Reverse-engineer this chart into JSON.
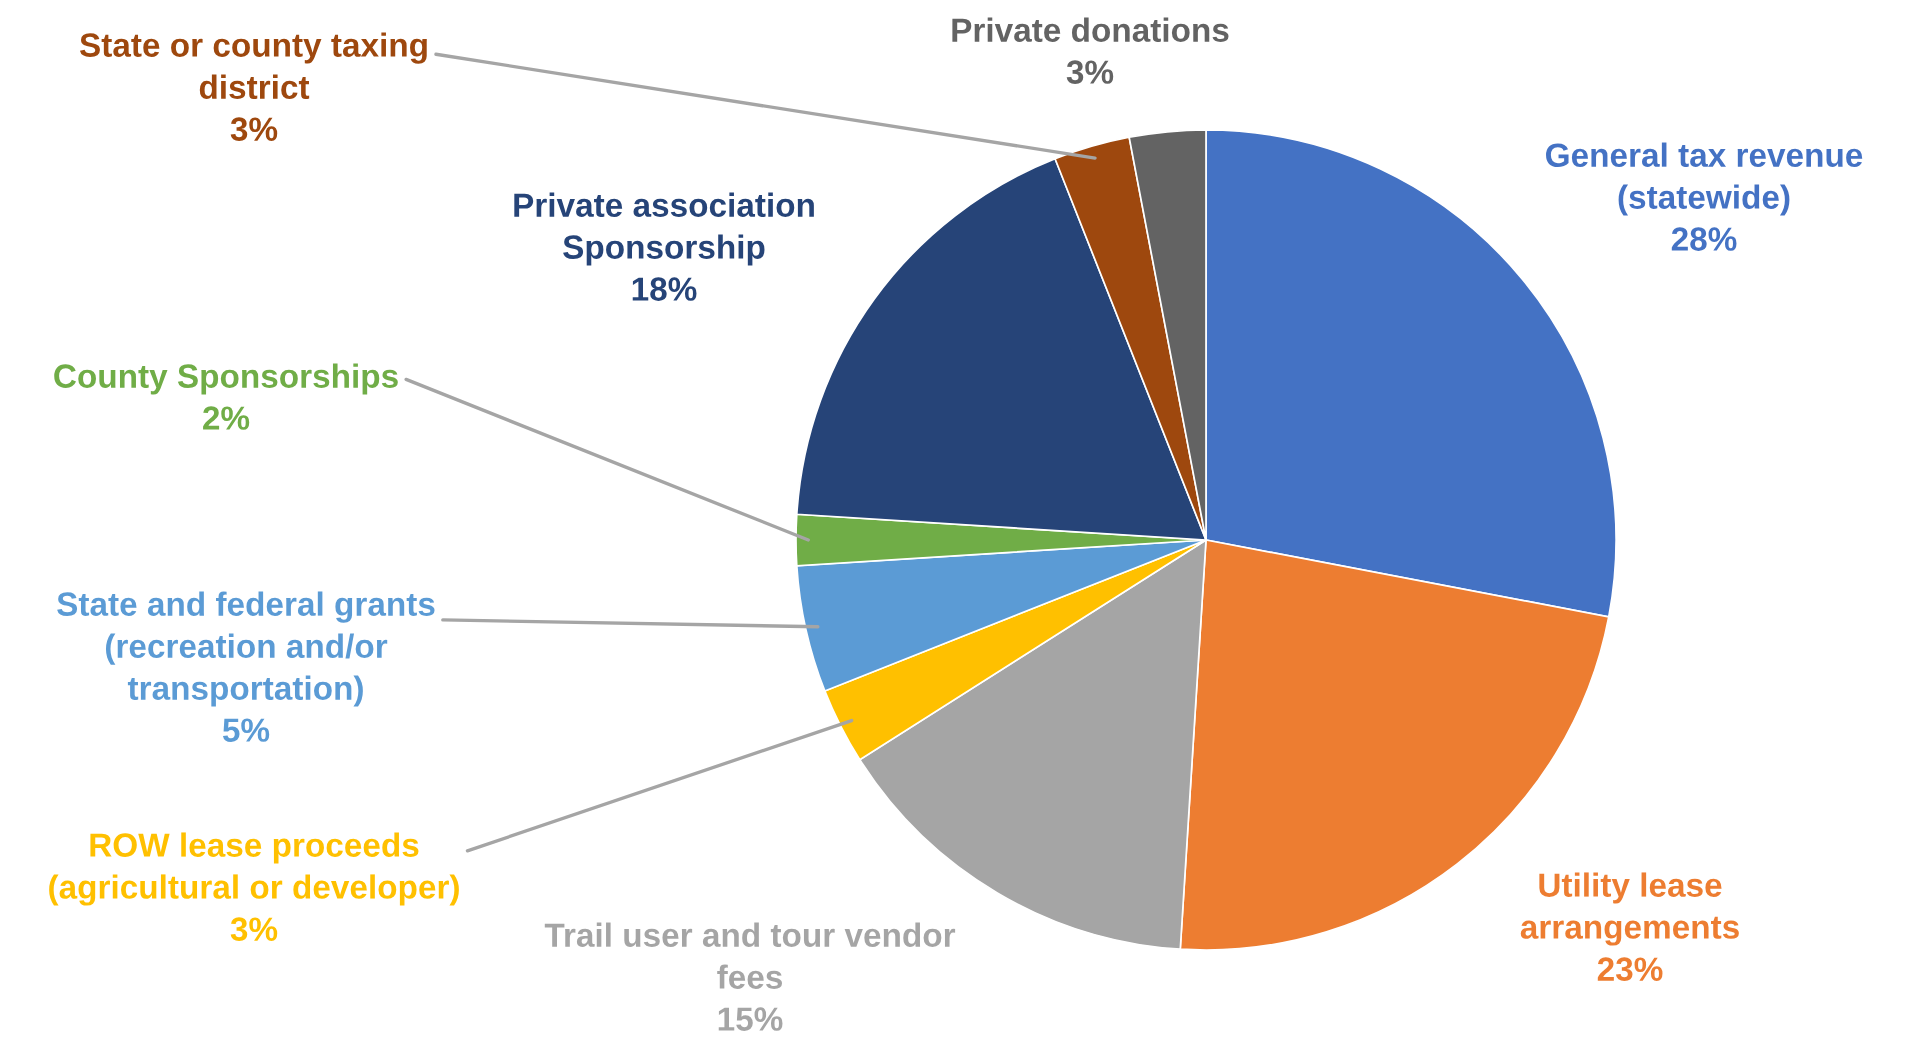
{
  "chart_data": {
    "type": "pie",
    "categories": [
      "General tax revenue\n(statewide)",
      "Utility lease\narrangements",
      "Trail user and tour vendor\nfees",
      "ROW lease proceeds\n(agricultural or developer)",
      "State and federal grants\n(recreation and/or\ntransportation)",
      "County Sponsorships",
      "Private association\nSponsorship",
      "State or county taxing\ndistrict",
      "Private donations"
    ],
    "values": [
      28,
      23,
      15,
      3,
      5,
      2,
      18,
      3,
      3
    ],
    "value_labels": [
      "28%",
      "23%",
      "15%",
      "3%",
      "5%",
      "2%",
      "18%",
      "3%",
      "3%"
    ],
    "colors": [
      "#4472c4",
      "#ed7d31",
      "#a5a5a5",
      "#ffc000",
      "#5b9bd5",
      "#70ad47",
      "#264478",
      "#9e480e",
      "#636363"
    ]
  }
}
